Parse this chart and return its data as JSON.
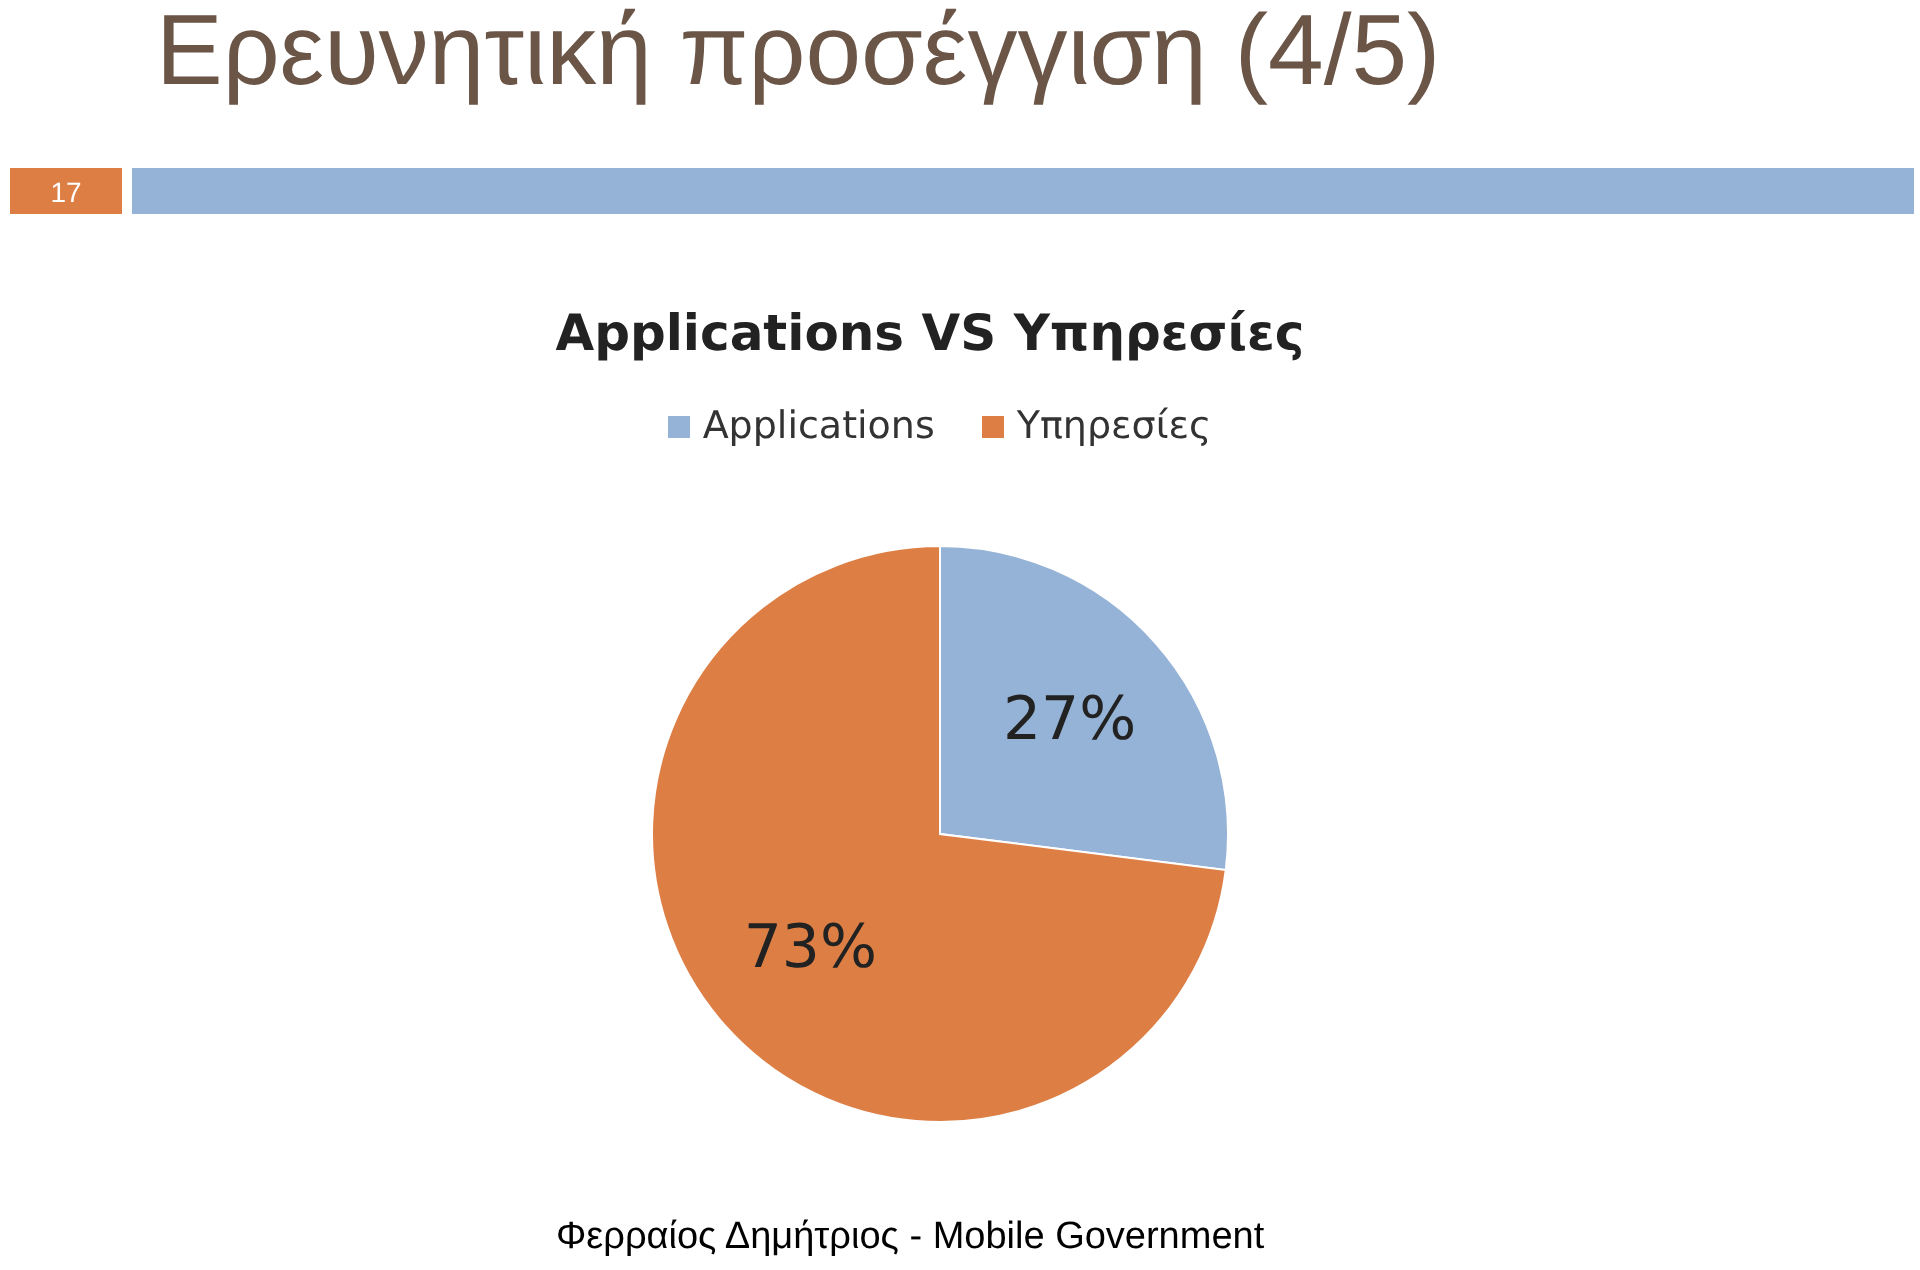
{
  "chart_data": {
    "type": "pie",
    "title": "Ερευνητική προσέγγιση (4/5)",
    "subtitle": "Applications VS Υπηρεσίες",
    "categories": [
      "Applications",
      "Υπηρεσίες"
    ],
    "values": [
      27,
      73
    ],
    "colors": [
      "#95b3d7",
      "#dd7f45"
    ],
    "legend": "top",
    "value_labels": [
      "27%",
      "73%"
    ],
    "annotations": [
      "17",
      "Φερραίος Δημήτριος - Mobile Government"
    ]
  }
}
